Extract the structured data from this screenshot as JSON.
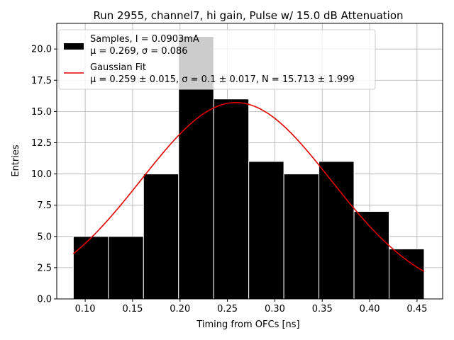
{
  "chart_data": {
    "type": "bar",
    "title": "Run 2955, channel7, hi gain, Pulse w/ 15.0 dB Attenuation",
    "xlabel": "Timing from OFCs [ns]",
    "ylabel": "Entries",
    "xlim": [
      0.07,
      0.477
    ],
    "ylim": [
      0,
      22.05
    ],
    "xticks": [
      "0.10",
      "0.15",
      "0.20",
      "0.25",
      "0.30",
      "0.35",
      "0.40",
      "0.45"
    ],
    "xtick_values": [
      0.1,
      0.15,
      0.2,
      0.25,
      0.3,
      0.35,
      0.4,
      0.45
    ],
    "yticks": [
      "0.0",
      "2.5",
      "5.0",
      "7.5",
      "10.0",
      "12.5",
      "15.0",
      "17.5",
      "20.0"
    ],
    "ytick_values": [
      0.0,
      2.5,
      5.0,
      7.5,
      10.0,
      12.5,
      15.0,
      17.5,
      20.0
    ],
    "grid": true,
    "bins": [
      {
        "x0": 0.0875,
        "x1": 0.1245,
        "count": 5
      },
      {
        "x0": 0.1245,
        "x1": 0.1615,
        "count": 5
      },
      {
        "x0": 0.1615,
        "x1": 0.1985,
        "count": 10
      },
      {
        "x0": 0.1985,
        "x1": 0.2355,
        "count": 21
      },
      {
        "x0": 0.2355,
        "x1": 0.2725,
        "count": 16
      },
      {
        "x0": 0.2725,
        "x1": 0.3095,
        "count": 11
      },
      {
        "x0": 0.3095,
        "x1": 0.3465,
        "count": 10
      },
      {
        "x0": 0.3465,
        "x1": 0.3835,
        "count": 11
      },
      {
        "x0": 0.3835,
        "x1": 0.4205,
        "count": 7
      },
      {
        "x0": 0.4205,
        "x1": 0.4575,
        "count": 4
      }
    ],
    "fit": {
      "mu": 0.259,
      "sigma": 0.1,
      "N": 15.713,
      "x_range": [
        0.0875,
        0.4575
      ]
    },
    "colors": {
      "bars": "#000000",
      "bar_edge": "#ffffff",
      "fit": "#e00000",
      "grid": "#b0b0b0"
    },
    "legend": {
      "placement": "upper-left",
      "samples_line1": "Samples, I = 0.0903mA",
      "samples_line2": "μ = 0.269, σ = 0.086",
      "fit_line1": "Gaussian Fit",
      "fit_line2": "μ = 0.259 ± 0.015, σ = 0.1 ± 0.017, N = 15.713 ± 1.999"
    }
  }
}
